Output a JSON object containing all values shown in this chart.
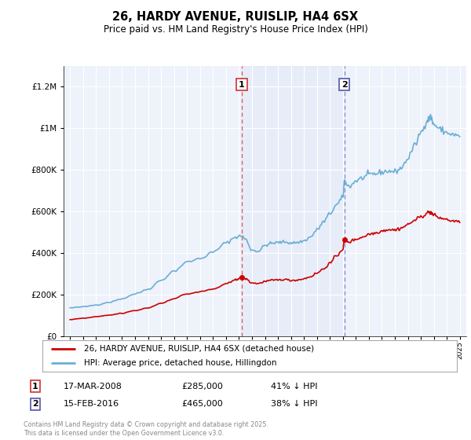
{
  "title": "26, HARDY AVENUE, RUISLIP, HA4 6SX",
  "subtitle": "Price paid vs. HM Land Registry's House Price Index (HPI)",
  "hpi_label": "HPI: Average price, detached house, Hillingdon",
  "property_label": "26, HARDY AVENUE, RUISLIP, HA4 6SX (detached house)",
  "sale1_date": "17-MAR-2008",
  "sale1_price": 285000,
  "sale1_pct": "41% ↓ HPI",
  "sale2_date": "15-FEB-2016",
  "sale2_price": 465000,
  "sale2_pct": "38% ↓ HPI",
  "footer": "Contains HM Land Registry data © Crown copyright and database right 2025.\nThis data is licensed under the Open Government Licence v3.0.",
  "hpi_color": "#6baed6",
  "property_color": "#cc0000",
  "sale1_vline_color": "#e05050",
  "sale2_vline_color": "#8888cc",
  "bg_color": "#ffffff",
  "plot_bg": "#eef2fa",
  "ylim": [
    0,
    1300000
  ],
  "sale1_x": 2008.21,
  "sale2_x": 2016.12,
  "yticks": [
    0,
    200000,
    400000,
    600000,
    800000,
    1000000,
    1200000
  ],
  "xlim_left": 1994.5,
  "xlim_right": 2025.5
}
